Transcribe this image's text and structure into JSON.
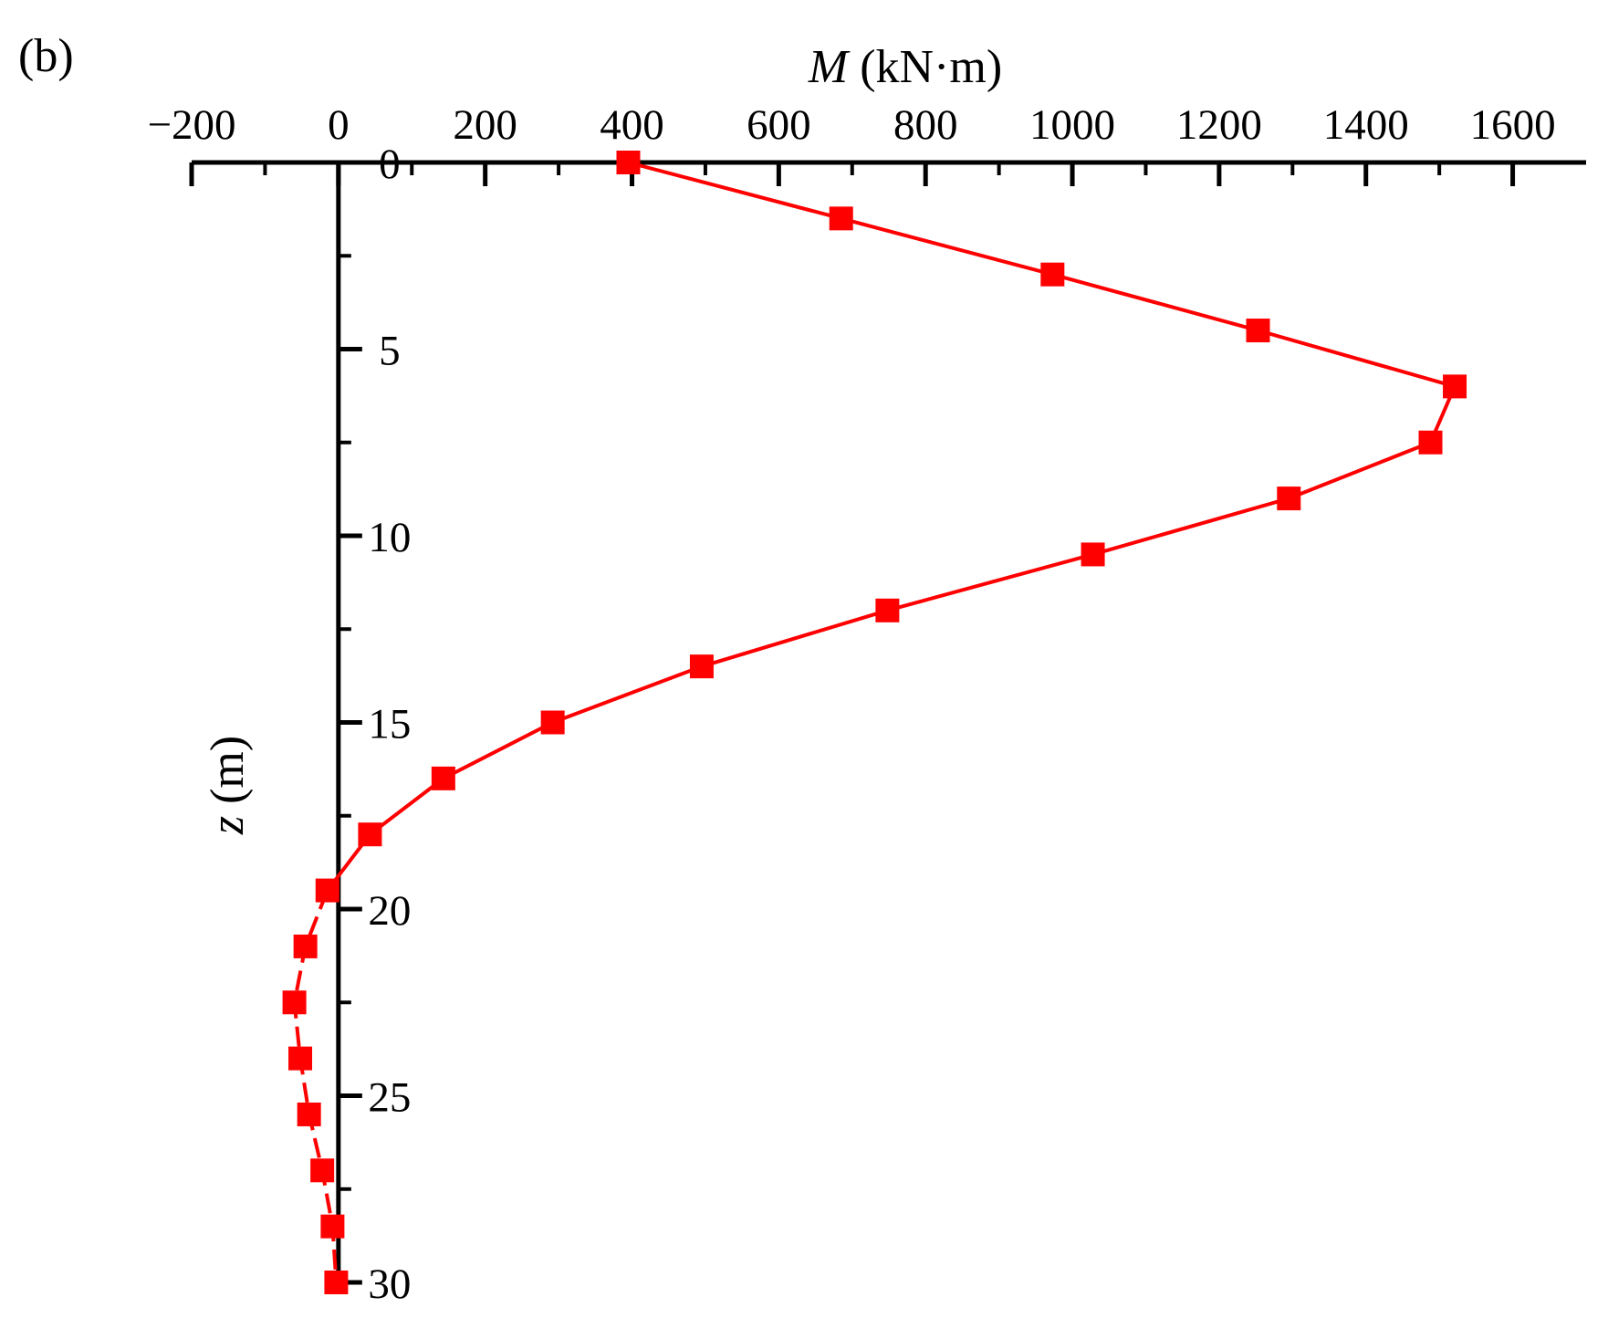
{
  "chart_data": {
    "type": "line",
    "panel_label": "(b)",
    "title": "",
    "xlabel_var": "M",
    "xlabel_unit": " (kN·m)",
    "ylabel_var": "z",
    "ylabel_unit": " (m)",
    "xlim": [
      -200,
      1700
    ],
    "ylim": [
      0,
      30
    ],
    "x_axis_position": "top",
    "y_axis_at_x": 0,
    "y_inverted": true,
    "x_ticks": [
      {
        "value": -200,
        "label": "−200"
      },
      {
        "value": 0,
        "label": "0"
      },
      {
        "value": 200,
        "label": "200"
      },
      {
        "value": 400,
        "label": "400"
      },
      {
        "value": 600,
        "label": "600"
      },
      {
        "value": 800,
        "label": "800"
      },
      {
        "value": 1000,
        "label": "1000"
      },
      {
        "value": 1200,
        "label": "1200"
      },
      {
        "value": 1400,
        "label": "1400"
      },
      {
        "value": 1600,
        "label": "1600"
      }
    ],
    "x_minor_ticks": [
      -100,
      100,
      300,
      500,
      700,
      900,
      1100,
      1300,
      1500
    ],
    "y_ticks": [
      {
        "value": 0,
        "label": "0"
      },
      {
        "value": 5,
        "label": "5"
      },
      {
        "value": 10,
        "label": "10"
      },
      {
        "value": 15,
        "label": "15"
      },
      {
        "value": 20,
        "label": "20"
      },
      {
        "value": 25,
        "label": "25"
      },
      {
        "value": 30,
        "label": "30"
      }
    ],
    "y_minor_ticks": [
      2.5,
      7.5,
      12.5,
      17.5,
      22.5,
      27.5
    ],
    "series": [
      {
        "name": "M",
        "color": "#ff0000",
        "marker": "square",
        "solid_until_index": 13,
        "points": [
          {
            "z": 0.0,
            "M": 395
          },
          {
            "z": 1.5,
            "M": 685
          },
          {
            "z": 3.0,
            "M": 973
          },
          {
            "z": 4.5,
            "M": 1253
          },
          {
            "z": 6.0,
            "M": 1521
          },
          {
            "z": 7.5,
            "M": 1488
          },
          {
            "z": 9.0,
            "M": 1295
          },
          {
            "z": 10.5,
            "M": 1028
          },
          {
            "z": 12.0,
            "M": 748
          },
          {
            "z": 13.5,
            "M": 495
          },
          {
            "z": 15.0,
            "M": 292
          },
          {
            "z": 16.5,
            "M": 143
          },
          {
            "z": 18.0,
            "M": 43
          },
          {
            "z": 19.5,
            "M": -15
          },
          {
            "z": 21.0,
            "M": -45
          },
          {
            "z": 22.5,
            "M": -60
          },
          {
            "z": 24.0,
            "M": -52
          },
          {
            "z": 25.5,
            "M": -40
          },
          {
            "z": 27.0,
            "M": -22
          },
          {
            "z": 28.5,
            "M": -8
          },
          {
            "z": 30.0,
            "M": -3
          }
        ]
      }
    ]
  },
  "colors": {
    "axis": "#000000",
    "series": "#ff0000",
    "background": "#ffffff"
  }
}
